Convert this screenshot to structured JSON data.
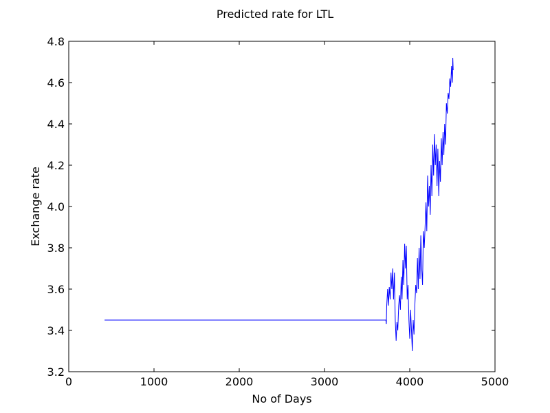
{
  "chart_data": {
    "type": "line",
    "title": "Predicted rate for LTL",
    "xlabel": "No of Days",
    "ylabel": "Exchange rate",
    "xlim": [
      0,
      5000
    ],
    "ylim": [
      3.2,
      4.8
    ],
    "xticks": [
      0,
      1000,
      2000,
      3000,
      4000,
      5000
    ],
    "xtick_labels": [
      "0",
      "1000",
      "2000",
      "3000",
      "4000",
      "5000"
    ],
    "yticks": [
      3.2,
      3.4,
      3.6,
      3.8,
      4.0,
      4.2,
      4.4,
      4.6,
      4.8
    ],
    "ytick_labels": [
      "3.2",
      "3.4",
      "3.6",
      "3.8",
      "4.0",
      "4.2",
      "4.4",
      "4.6",
      "4.8"
    ],
    "grid": false,
    "series": [
      {
        "color": "#0000ff",
        "x": [
          420,
          3000,
          3720,
          3725,
          3730,
          3740,
          3750,
          3760,
          3770,
          3780,
          3790,
          3800,
          3810,
          3820,
          3830,
          3840,
          3850,
          3860,
          3870,
          3880,
          3890,
          3900,
          3910,
          3920,
          3930,
          3940,
          3950,
          3960,
          3970,
          3980,
          3990,
          4000,
          4010,
          4020,
          4030,
          4040,
          4050,
          4060,
          4070,
          4080,
          4090,
          4100,
          4110,
          4120,
          4130,
          4140,
          4150,
          4160,
          4170,
          4180,
          4190,
          4200,
          4210,
          4220,
          4230,
          4240,
          4250,
          4260,
          4270,
          4280,
          4290,
          4300,
          4310,
          4320,
          4330,
          4340,
          4350,
          4360,
          4370,
          4380,
          4390,
          4400,
          4410,
          4420,
          4430,
          4440,
          4450,
          4460,
          4470,
          4480,
          4490,
          4500,
          4505,
          4510
        ],
        "y": [
          3.45,
          3.45,
          3.45,
          3.43,
          3.52,
          3.6,
          3.52,
          3.61,
          3.55,
          3.68,
          3.6,
          3.7,
          3.55,
          3.68,
          3.45,
          3.35,
          3.44,
          3.4,
          3.52,
          3.57,
          3.5,
          3.66,
          3.55,
          3.74,
          3.62,
          3.82,
          3.7,
          3.81,
          3.55,
          3.62,
          3.45,
          3.36,
          3.5,
          3.4,
          3.3,
          3.45,
          3.38,
          3.52,
          3.62,
          3.58,
          3.75,
          3.6,
          3.8,
          3.65,
          3.86,
          3.7,
          3.62,
          3.88,
          3.8,
          3.9,
          4.02,
          3.88,
          4.15,
          4.0,
          4.1,
          3.96,
          4.2,
          4.05,
          4.3,
          4.15,
          4.35,
          4.2,
          4.3,
          4.1,
          4.28,
          4.05,
          4.22,
          4.12,
          4.33,
          4.2,
          4.36,
          4.25,
          4.4,
          4.3,
          4.5,
          4.45,
          4.55,
          4.52,
          4.62,
          4.58,
          4.68,
          4.6,
          4.72,
          4.66
        ]
      }
    ]
  }
}
